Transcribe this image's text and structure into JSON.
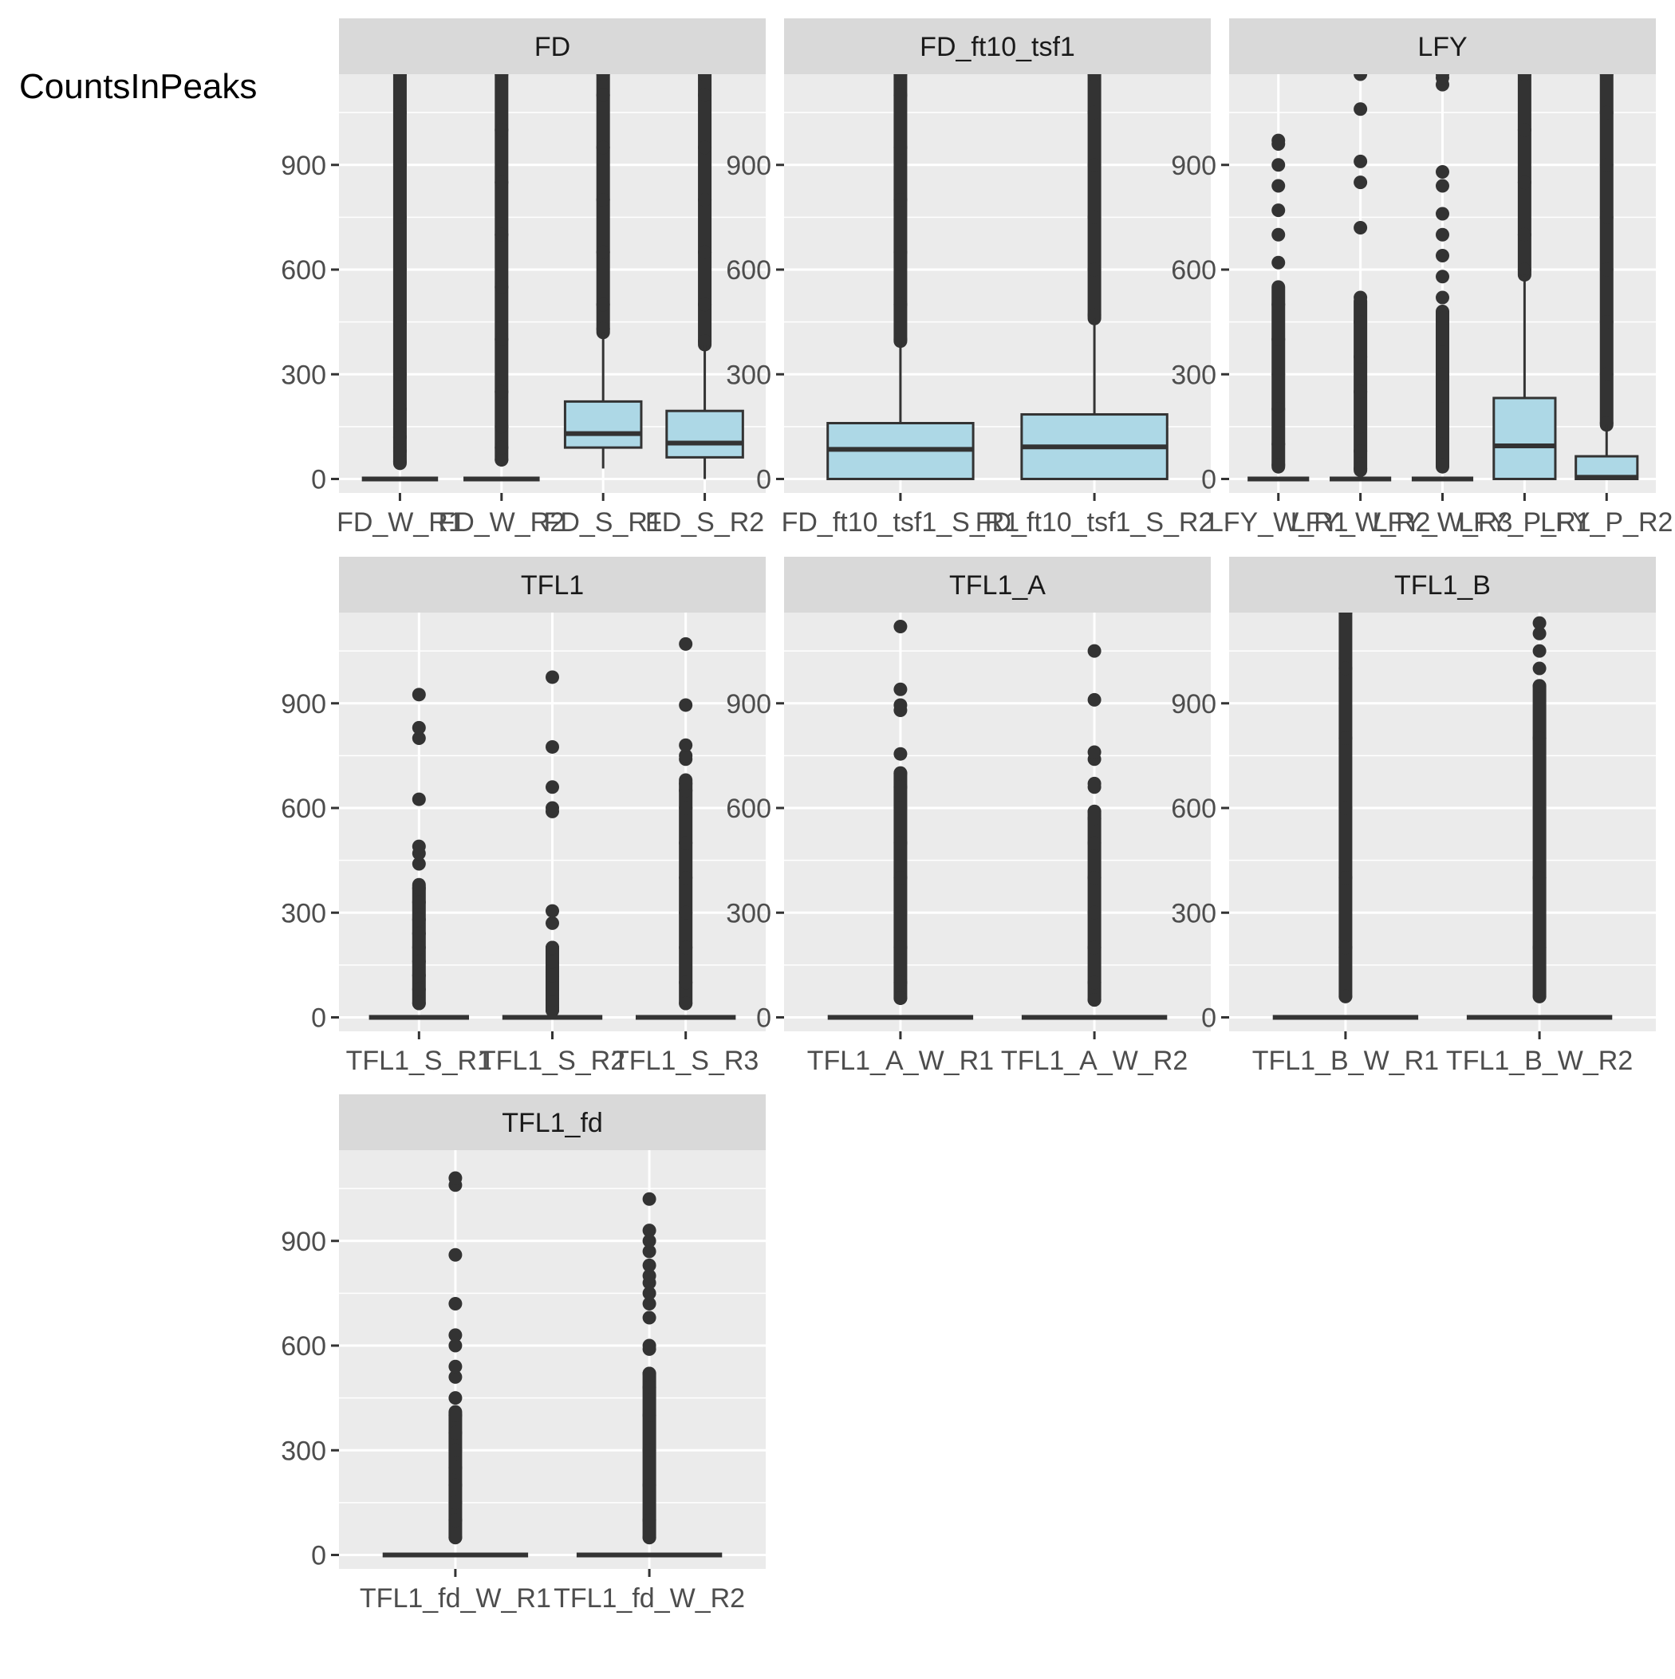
{
  "chart_data": {
    "type": "box",
    "ylabel": "CountsInPeaks",
    "ylim": [
      -40,
      1160
    ],
    "y_ticks": [
      0,
      300,
      600,
      900
    ],
    "grid": true,
    "legend": "none",
    "colors": {
      "panel_bg": "#ebebeb",
      "strip_bg": "#d9d9d9",
      "grid": "#ffffff",
      "box_fill": "#add8e6",
      "line": "#333333",
      "tick_text": "#4d4d4d"
    },
    "panels": [
      {
        "name": "FD",
        "boxes": [
          {
            "label": "FD_W_R1",
            "min": 0,
            "q1": 0,
            "median": 0,
            "q3": 0,
            "max": 0,
            "outliers": [
              50,
              80,
              120,
              200,
              300,
              450,
              600,
              750,
              900,
              1050,
              1160
            ],
            "outlier_band": [
              45,
              1160
            ]
          },
          {
            "label": "FD_W_R2",
            "min": 0,
            "q1": 0,
            "median": 0,
            "q3": 0,
            "max": 0,
            "outliers": [
              55,
              90,
              150,
              250,
              400,
              550,
              700,
              850,
              1000,
              1160
            ],
            "outlier_band": [
              55,
              1160
            ]
          },
          {
            "label": "FD_S_R1",
            "min": 30,
            "q1": 90,
            "median": 130,
            "q3": 222,
            "max": 420,
            "outliers": [
              430,
              500,
              650,
              800,
              950,
              1100,
              1160
            ],
            "outlier_band": [
              420,
              1160
            ]
          },
          {
            "label": "FD_S_R2",
            "min": 0,
            "q1": 62,
            "median": 103,
            "q3": 195,
            "max": 385,
            "outliers": [
              395,
              500,
              650,
              800,
              950,
              1100,
              1160
            ],
            "outlier_band": [
              385,
              1160
            ]
          }
        ]
      },
      {
        "name": "FD_ft10_tsf1",
        "boxes": [
          {
            "label": "FD_ft10_tsf1_S_R1",
            "min": 0,
            "q1": 0,
            "median": 85,
            "q3": 160,
            "max": 395,
            "outliers": [
              400,
              500,
              650,
              800,
              950,
              1100,
              1160
            ],
            "outlier_band": [
              395,
              1160
            ]
          },
          {
            "label": "FD_ft10_tsf1_S_R2",
            "min": 0,
            "q1": 0,
            "median": 92,
            "q3": 185,
            "max": 460,
            "outliers": [
              470,
              600,
              750,
              900,
              1050,
              1160
            ],
            "outlier_band": [
              460,
              1160
            ]
          }
        ]
      },
      {
        "name": "LFY",
        "boxes": [
          {
            "label": "LFY_W_R1",
            "min": 0,
            "q1": 0,
            "median": 0,
            "q3": 0,
            "max": 0,
            "outliers": [
              40,
              100,
              200,
              300,
              400,
              500,
              620,
              700,
              770,
              840,
              900,
              960,
              970
            ],
            "outlier_band": [
              35,
              550
            ]
          },
          {
            "label": "LFY_W_R2",
            "min": 0,
            "q1": 0,
            "median": 0,
            "q3": 0,
            "max": 0,
            "outliers": [
              30,
              80,
              150,
              250,
              350,
              450,
              520,
              720,
              850,
              910,
              1060,
              1160
            ],
            "outlier_band": [
              25,
              510
            ]
          },
          {
            "label": "LFY_W_R3",
            "min": 0,
            "q1": 0,
            "median": 0,
            "q3": 0,
            "max": 0,
            "outliers": [
              40,
              100,
              200,
              300,
              400,
              460,
              520,
              580,
              640,
              700,
              760,
              840,
              880,
              1130,
              1150,
              1160
            ],
            "outlier_band": [
              35,
              480
            ]
          },
          {
            "label": "LFY_P_R1",
            "min": 0,
            "q1": 0,
            "median": 95,
            "q3": 232,
            "max": 585,
            "outliers": [
              600,
              700,
              850,
              1000,
              1160
            ],
            "outlier_band": [
              585,
              1160
            ]
          },
          {
            "label": "LFY_P_R2",
            "min": 0,
            "q1": 0,
            "median": 5,
            "q3": 65,
            "max": 155,
            "outliers": [
              160,
              300,
              450,
              600,
              750,
              900,
              1050,
              1160
            ],
            "outlier_band": [
              155,
              1160
            ]
          }
        ]
      },
      {
        "name": "TFL1",
        "boxes": [
          {
            "label": "TFL1_S_R1",
            "min": 0,
            "q1": 0,
            "median": 0,
            "q3": 0,
            "max": 0,
            "outliers": [
              40,
              80,
              120,
              160,
              200,
              240,
              280,
              330,
              370,
              440,
              470,
              490,
              625,
              800,
              830,
              925
            ],
            "outlier_band": [
              40,
              380
            ]
          },
          {
            "label": "TFL1_S_R2",
            "min": 0,
            "q1": 0,
            "median": 0,
            "q3": 0,
            "max": 0,
            "outliers": [
              20,
              50,
              80,
              120,
              160,
              200,
              270,
              305,
              590,
              600,
              660,
              775,
              975
            ],
            "outlier_band": [
              20,
              200
            ]
          },
          {
            "label": "TFL1_S_R3",
            "min": 0,
            "q1": 0,
            "median": 0,
            "q3": 0,
            "max": 0,
            "outliers": [
              40,
              100,
              200,
              300,
              400,
              500,
              600,
              650,
              670,
              740,
              750,
              780,
              895,
              1070
            ],
            "outlier_band": [
              40,
              680
            ]
          }
        ]
      },
      {
        "name": "TFL1_A",
        "boxes": [
          {
            "label": "TFL1_A_W_R1",
            "min": 0,
            "q1": 0,
            "median": 0,
            "q3": 0,
            "max": 0,
            "outliers": [
              55,
              100,
              200,
              300,
              400,
              500,
              600,
              660,
              700,
              755,
              880,
              895,
              940,
              1120
            ],
            "outlier_band": [
              55,
              700
            ]
          },
          {
            "label": "TFL1_A_W_R2",
            "min": 0,
            "q1": 0,
            "median": 0,
            "q3": 0,
            "max": 0,
            "outliers": [
              50,
              100,
              200,
              300,
              400,
              500,
              570,
              590,
              660,
              670,
              740,
              760,
              910,
              1050
            ],
            "outlier_band": [
              50,
              590
            ]
          }
        ]
      },
      {
        "name": "TFL1_B",
        "boxes": [
          {
            "label": "TFL1_B_W_R1",
            "min": 0,
            "q1": 0,
            "median": 0,
            "q3": 0,
            "max": 0,
            "outliers": [
              60,
              200,
              400,
              600,
              800,
              1000,
              1160
            ],
            "outlier_band": [
              60,
              1160
            ]
          },
          {
            "label": "TFL1_B_W_R2",
            "min": 0,
            "q1": 0,
            "median": 0,
            "q3": 0,
            "max": 0,
            "outliers": [
              60,
              200,
              400,
              600,
              800,
              950,
              1000,
              1050,
              1100,
              1130
            ],
            "outlier_band": [
              60,
              950
            ]
          }
        ]
      },
      {
        "name": "TFL1_fd",
        "boxes": [
          {
            "label": "TFL1_fd_W_R1",
            "min": 0,
            "q1": 0,
            "median": 0,
            "q3": 0,
            "max": 0,
            "outliers": [
              50,
              100,
              150,
              200,
              250,
              300,
              350,
              400,
              450,
              510,
              540,
              600,
              630,
              720,
              860,
              1060,
              1080
            ],
            "outlier_band": [
              50,
              410
            ]
          },
          {
            "label": "TFL1_fd_W_R2",
            "min": 0,
            "q1": 0,
            "median": 0,
            "q3": 0,
            "max": 0,
            "outliers": [
              50,
              100,
              200,
              300,
              400,
              480,
              520,
              590,
              600,
              680,
              720,
              750,
              780,
              800,
              830,
              870,
              900,
              930,
              1020
            ],
            "outlier_band": [
              50,
              520
            ]
          }
        ]
      }
    ]
  }
}
